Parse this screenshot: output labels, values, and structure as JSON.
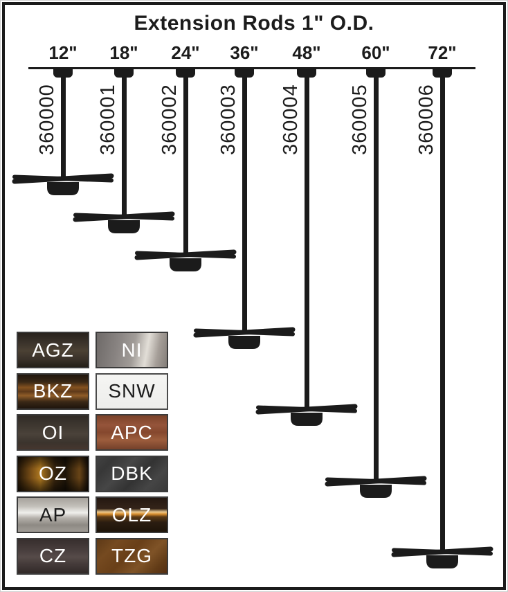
{
  "title": "Extension Rods 1\" O.D.",
  "diagram": {
    "description": "Seven extension rods hanging from a ceiling line, each ending in a ceiling-fan silhouette",
    "rods": [
      {
        "length_label": "12\"",
        "model": "360000"
      },
      {
        "length_label": "18\"",
        "model": "360001"
      },
      {
        "length_label": "24\"",
        "model": "360002"
      },
      {
        "length_label": "36\"",
        "model": "360003"
      },
      {
        "length_label": "48\"",
        "model": "360004"
      },
      {
        "length_label": "60\"",
        "model": "360005"
      },
      {
        "length_label": "72\"",
        "model": "360006"
      }
    ],
    "line_color": "#1b1b1b"
  },
  "finishes": {
    "left_column": [
      {
        "code": "AGZ",
        "base_hex": "#3b322a",
        "label_color": "#ffffff"
      },
      {
        "code": "BKZ",
        "base_hex": "#5f3a1a",
        "label_color": "#ffffff"
      },
      {
        "code": "OI",
        "base_hex": "#423b33",
        "label_color": "#ffffff"
      },
      {
        "code": "OZ",
        "base_hex": "#2a1c0d",
        "label_color": "#ffffff"
      },
      {
        "code": "AP",
        "base_hex": "#b9b6b0",
        "label_color": "#1c1c1c"
      },
      {
        "code": "CZ",
        "base_hex": "#4a403f",
        "label_color": "#ffffff"
      }
    ],
    "right_column": [
      {
        "code": "NI",
        "base_hex": "#a19c98",
        "label_color": "#ffffff"
      },
      {
        "code": "SNW",
        "base_hex": "#f1f1ef",
        "label_color": "#1c1c1c"
      },
      {
        "code": "APC",
        "base_hex": "#8a4c30",
        "label_color": "#ffffff"
      },
      {
        "code": "DBK",
        "base_hex": "#3d3d3d",
        "label_color": "#ffffff"
      },
      {
        "code": "OLZ",
        "base_hex": "#d98f2e",
        "label_color": "#ffffff"
      },
      {
        "code": "TZG",
        "base_hex": "#6e4520",
        "label_color": "#ffffff"
      }
    ]
  }
}
